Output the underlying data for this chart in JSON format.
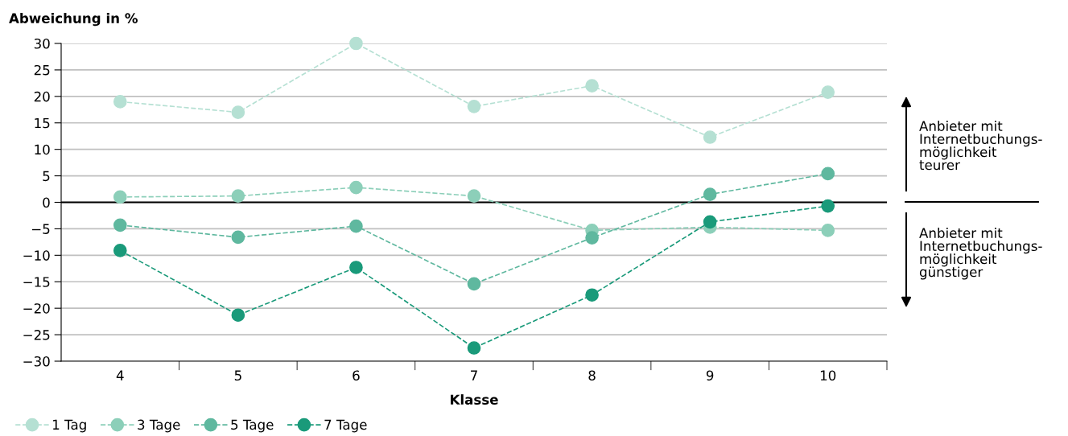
{
  "chart_data": {
    "type": "line",
    "ylabel": "Abweichung in %",
    "xlabel": "Klasse",
    "categories": [
      "4",
      "5",
      "6",
      "7",
      "8",
      "9",
      "10"
    ],
    "series": [
      {
        "name": "1 Tag",
        "color": "#b5e0d3",
        "values": [
          19,
          17,
          30,
          18.1,
          22,
          12.3,
          20.8
        ]
      },
      {
        "name": "3 Tage",
        "color": "#8ccfb9",
        "values": [
          1,
          1.2,
          2.8,
          1.2,
          -5.3,
          -4.7,
          -5.3
        ]
      },
      {
        "name": "5 Tage",
        "color": "#5fb89f",
        "values": [
          -4.3,
          -6.6,
          -4.5,
          -15.4,
          -6.7,
          1.5,
          5.4
        ]
      },
      {
        "name": "7 Tage",
        "color": "#1a9a7a",
        "values": [
          -9.1,
          -21.3,
          -12.3,
          -27.5,
          -17.5,
          -3.7,
          -0.7
        ]
      }
    ],
    "ylim": [
      -30,
      30
    ],
    "yticks": [
      {
        "value": -30,
        "label": "−30"
      },
      {
        "value": -25,
        "label": "−25"
      },
      {
        "value": -20,
        "label": "−20"
      },
      {
        "value": -15,
        "label": "−15"
      },
      {
        "value": -10,
        "label": "−10"
      },
      {
        "value": -5,
        "label": "−5"
      },
      0,
      5,
      10,
      15,
      20,
      25,
      30
    ],
    "ref_lines": [
      {
        "axis": "y",
        "value": 0,
        "color": "#000000"
      }
    ],
    "annotations": [
      "Anbieter mit\nInternetbuchungs-\nmöglichkeit\nteurer",
      "Anbieter mit\nInternetbuchungs-\nmöglichkeit\ngünstiger"
    ],
    "grid": "y",
    "legend": "bottom left",
    "marker": "circle",
    "line_style": "dashed"
  }
}
